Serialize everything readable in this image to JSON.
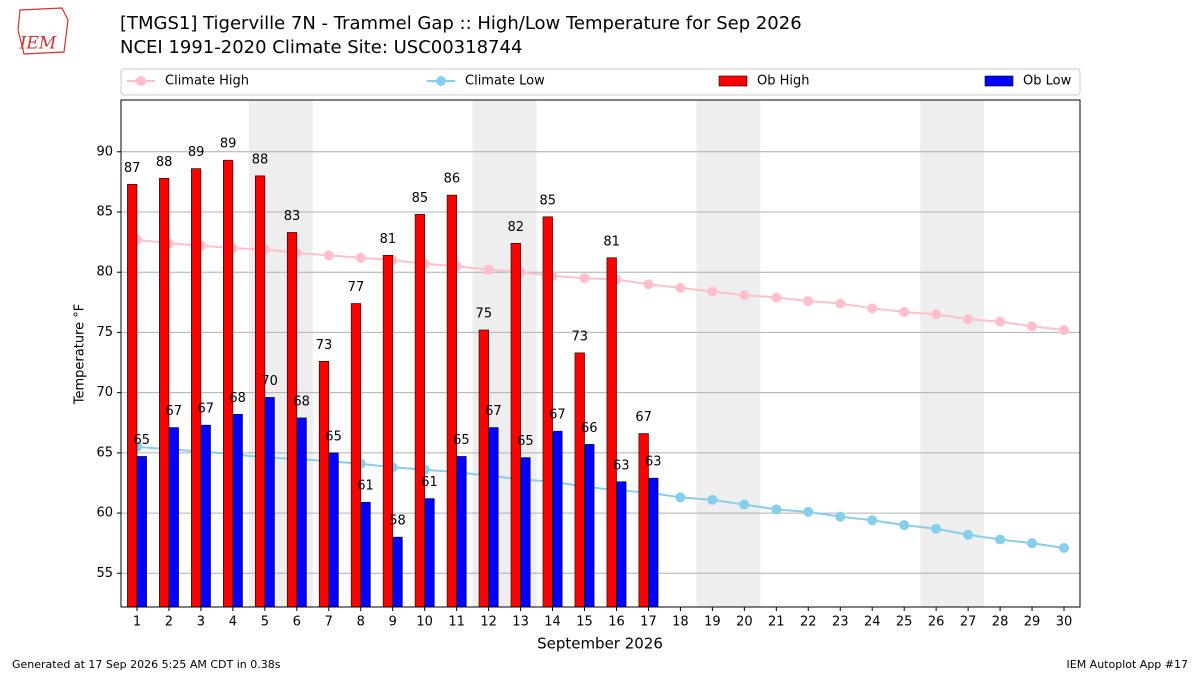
{
  "logo": "IEM",
  "footer": {
    "left": "Generated at 17 Sep 2026 5:25 AM CDT in 0.38s",
    "right": "IEM Autoplot App #17"
  },
  "chart_data": {
    "type": "bar",
    "title": "[TMGS1] Tigerville 7N - Trammel Gap :: High/Low Temperature for Sep 2026",
    "subtitle": "NCEI 1991-2020 Climate Site: USC00318744",
    "x_label": "September 2026",
    "y_label": "Temperature °F",
    "x": [
      1,
      2,
      3,
      4,
      5,
      6,
      7,
      8,
      9,
      10,
      11,
      12,
      13,
      14,
      15,
      16,
      17,
      18,
      19,
      20,
      21,
      22,
      23,
      24,
      25,
      26,
      27,
      28,
      29,
      30
    ],
    "xlim": [
      0.5,
      30.5
    ],
    "xticks": [
      1,
      2,
      3,
      4,
      5,
      6,
      7,
      8,
      9,
      10,
      11,
      12,
      13,
      14,
      15,
      16,
      17,
      18,
      19,
      20,
      21,
      22,
      23,
      24,
      25,
      26,
      27,
      28,
      29,
      30
    ],
    "ylim": [
      52.2,
      94.3
    ],
    "yticks": [
      55,
      60,
      65,
      70,
      75,
      80,
      85,
      90
    ],
    "grid": true,
    "shaded_spans": [
      [
        4.5,
        6.5
      ],
      [
        11.5,
        13.5
      ],
      [
        18.5,
        20.5
      ],
      [
        25.5,
        27.5
      ]
    ],
    "series": [
      {
        "name": "Climate High",
        "kind": "line",
        "color": "#ffc0cb",
        "values": [
          82.7,
          82.4,
          82.2,
          82.0,
          81.9,
          81.6,
          81.4,
          81.2,
          81.0,
          80.7,
          80.5,
          80.2,
          80.0,
          79.7,
          79.5,
          79.4,
          79.0,
          78.7,
          78.4,
          78.1,
          77.9,
          77.6,
          77.4,
          77.0,
          76.7,
          76.5,
          76.1,
          75.9,
          75.5,
          75.2
        ]
      },
      {
        "name": "Climate Low",
        "kind": "line",
        "color": "#87ceeb",
        "values": [
          65.5,
          65.3,
          65.1,
          64.9,
          64.6,
          64.5,
          64.3,
          64.1,
          63.8,
          63.6,
          63.4,
          63.1,
          62.8,
          62.6,
          62.2,
          61.9,
          61.7,
          61.3,
          61.1,
          60.7,
          60.3,
          60.1,
          59.7,
          59.4,
          59.0,
          58.7,
          58.2,
          57.8,
          57.5,
          57.1
        ]
      },
      {
        "name": "Ob High",
        "kind": "bar",
        "color": "#ff0000",
        "values": [
          87.3,
          87.8,
          88.6,
          89.3,
          88.0,
          83.3,
          72.6,
          77.4,
          81.4,
          84.8,
          86.4,
          75.2,
          82.4,
          84.6,
          73.3,
          81.2,
          66.6,
          null,
          null,
          null,
          null,
          null,
          null,
          null,
          null,
          null,
          null,
          null,
          null,
          null
        ],
        "value_labels": [
          "87",
          "88",
          "89",
          "89",
          "88",
          "83",
          "73",
          "77",
          "81",
          "85",
          "86",
          "75",
          "82",
          "85",
          "73",
          "81",
          "67",
          null,
          null,
          null,
          null,
          null,
          null,
          null,
          null,
          null,
          null,
          null,
          null,
          null
        ]
      },
      {
        "name": "Ob Low",
        "kind": "bar",
        "color": "#0000ff",
        "values": [
          64.7,
          67.1,
          67.3,
          68.2,
          69.6,
          67.9,
          65.0,
          60.9,
          58.0,
          61.2,
          64.7,
          67.1,
          64.6,
          66.8,
          65.7,
          62.6,
          62.9,
          null,
          null,
          null,
          null,
          null,
          null,
          null,
          null,
          null,
          null,
          null,
          null,
          null
        ],
        "value_labels": [
          "65",
          "67",
          "67",
          "68",
          "70",
          "68",
          "65",
          "61",
          "58",
          "61",
          "65",
          "67",
          "65",
          "67",
          "66",
          "63",
          "63",
          null,
          null,
          null,
          null,
          null,
          null,
          null,
          null,
          null,
          null,
          null,
          null,
          null
        ]
      }
    ]
  }
}
